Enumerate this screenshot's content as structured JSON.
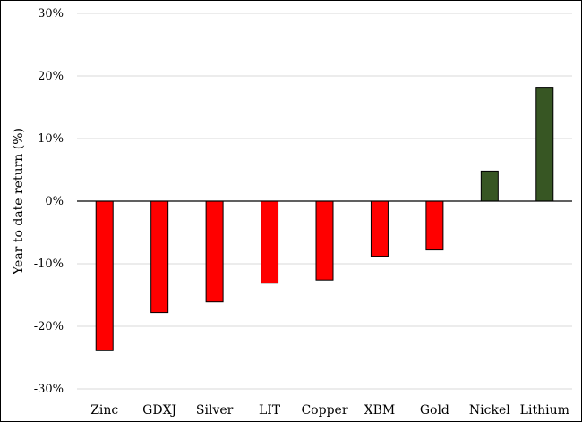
{
  "chart_data": {
    "type": "bar",
    "title": "",
    "xlabel": "",
    "ylabel": "Year to date return (%)",
    "ylim": [
      -30,
      30
    ],
    "yticks": [
      30,
      20,
      10,
      0,
      -10,
      -20,
      -30
    ],
    "ytick_labels": [
      "30%",
      "20%",
      "10%",
      "0%",
      "-10%",
      "-20%",
      "-30%"
    ],
    "grid": true,
    "legend": "none",
    "categories": [
      "Zinc",
      "GDXJ",
      "Silver",
      "LIT",
      "Copper",
      "XBM",
      "Gold",
      "Nickel",
      "Lithium"
    ],
    "values": [
      -23.9,
      -17.8,
      -16.1,
      -13.1,
      -12.6,
      -8.8,
      -7.8,
      4.8,
      18.2
    ],
    "colors": {
      "negative": "#ff0000",
      "positive": "#375623",
      "bar_outline": "#000000",
      "grid": "#d9d9d9",
      "axis": "#000000"
    }
  }
}
